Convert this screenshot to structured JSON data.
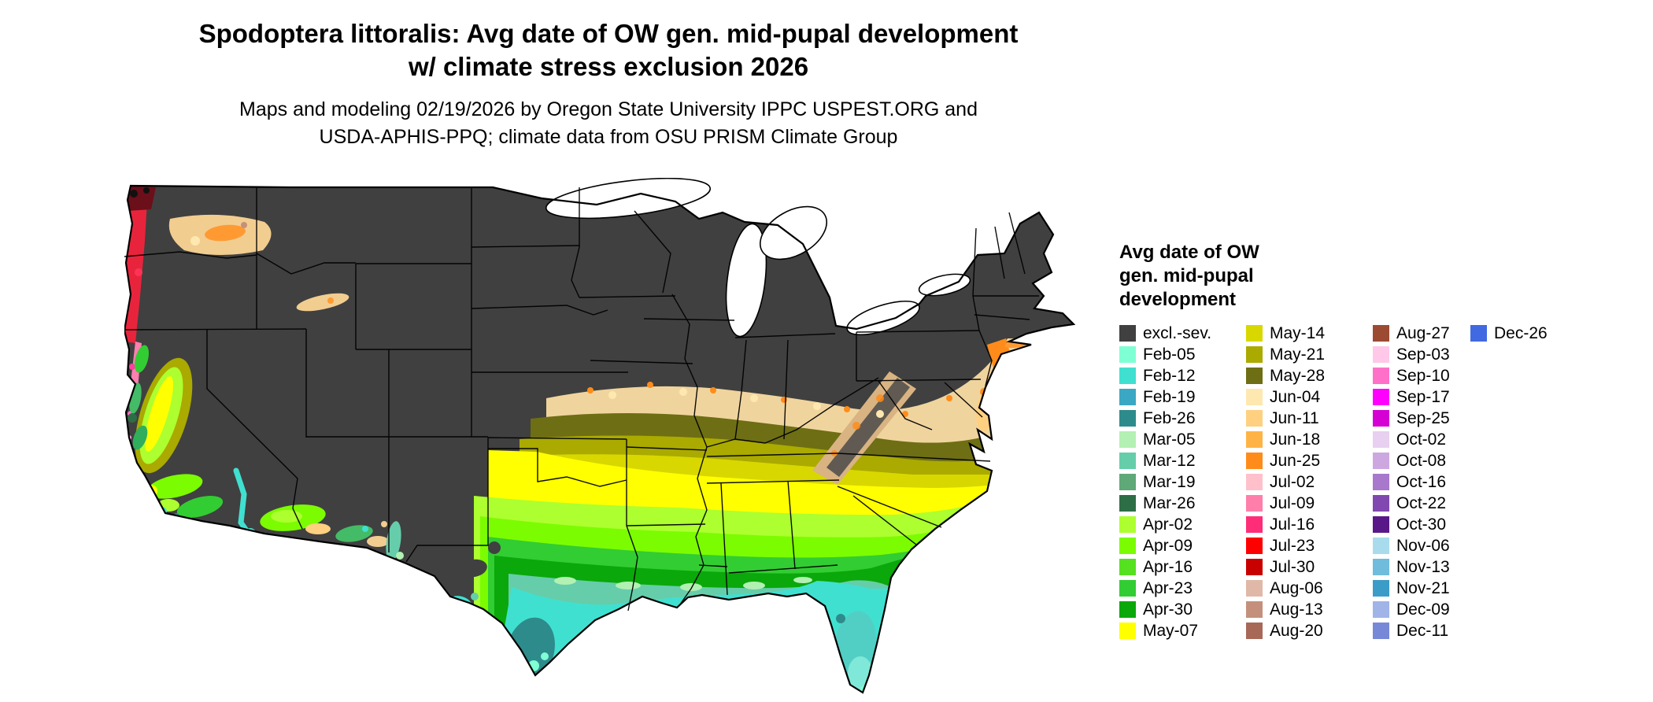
{
  "header": {
    "title_line1": "Spodoptera littoralis: Avg date of OW gen. mid-pupal development",
    "title_line2": "w/ climate stress exclusion 2026",
    "subtitle_line1": "Maps and modeling 02/19/2026 by Oregon State University IPPC USPEST.ORG and",
    "subtitle_line2": "USDA-APHIS-PPQ; climate data from OSU PRISM Climate Group"
  },
  "map": {
    "type": "choropleth-us-continental",
    "base_category": "excl.-sev.",
    "base_color": "#404040"
  },
  "legend": {
    "title_lines": [
      "Avg date of OW",
      "gen. mid-pupal",
      "development"
    ],
    "columns": [
      {
        "entries": [
          {
            "label": "excl.-sev.",
            "color": "#404040"
          },
          {
            "label": "Feb-05",
            "color": "#7fffd4"
          },
          {
            "label": "Feb-12",
            "color": "#40e0d0"
          },
          {
            "label": "Feb-19",
            "color": "#3aa8c4"
          },
          {
            "label": "Feb-26",
            "color": "#2e8b8b"
          },
          {
            "label": "Mar-05",
            "color": "#b3f0b3"
          },
          {
            "label": "Mar-12",
            "color": "#66cdaa"
          },
          {
            "label": "Mar-19",
            "color": "#5fa878"
          },
          {
            "label": "Mar-26",
            "color": "#2e6e46"
          },
          {
            "label": "Apr-02",
            "color": "#adff2f"
          },
          {
            "label": "Apr-09",
            "color": "#7cfc00"
          },
          {
            "label": "Apr-16",
            "color": "#55e020"
          },
          {
            "label": "Apr-23",
            "color": "#32cd32"
          },
          {
            "label": "Apr-30",
            "color": "#0aa80a"
          },
          {
            "label": "May-07",
            "color": "#ffff00"
          }
        ]
      },
      {
        "entries": [
          {
            "label": "May-14",
            "color": "#d8d800"
          },
          {
            "label": "May-21",
            "color": "#aaaa00"
          },
          {
            "label": "May-28",
            "color": "#6e6e14"
          },
          {
            "label": "Jun-04",
            "color": "#ffe8b0"
          },
          {
            "label": "Jun-11",
            "color": "#ffd080"
          },
          {
            "label": "Jun-18",
            "color": "#ffb347"
          },
          {
            "label": "Jun-25",
            "color": "#ff8c1a"
          },
          {
            "label": "Jul-02",
            "color": "#ffc0cb"
          },
          {
            "label": "Jul-09",
            "color": "#ff7faa"
          },
          {
            "label": "Jul-16",
            "color": "#ff2d78"
          },
          {
            "label": "Jul-23",
            "color": "#ff0000"
          },
          {
            "label": "Jul-30",
            "color": "#c80000"
          },
          {
            "label": "Aug-06",
            "color": "#e0b8a8"
          },
          {
            "label": "Aug-13",
            "color": "#c4907c"
          },
          {
            "label": "Aug-20",
            "color": "#a86858"
          }
        ]
      },
      {
        "entries": [
          {
            "label": "Aug-27",
            "color": "#9c4a32"
          },
          {
            "label": "Sep-03",
            "color": "#ffc8e8"
          },
          {
            "label": "Sep-10",
            "color": "#ff70c8"
          },
          {
            "label": "Sep-17",
            "color": "#ff00ff"
          },
          {
            "label": "Sep-25",
            "color": "#d400d4"
          },
          {
            "label": "Oct-02",
            "color": "#e8d0f0"
          },
          {
            "label": "Oct-08",
            "color": "#cda8e0"
          },
          {
            "label": "Oct-16",
            "color": "#a878cc"
          },
          {
            "label": "Oct-22",
            "color": "#8048b0"
          },
          {
            "label": "Oct-30",
            "color": "#581888"
          },
          {
            "label": "Nov-06",
            "color": "#a8dcec"
          },
          {
            "label": "Nov-13",
            "color": "#70bcdc"
          },
          {
            "label": "Nov-21",
            "color": "#3c9cc8"
          },
          {
            "label": "Dec-09",
            "color": "#a0b4e8"
          },
          {
            "label": "Dec-11",
            "color": "#7888d8"
          }
        ]
      },
      {
        "entries": [
          {
            "label": "Dec-26",
            "color": "#4169e1"
          }
        ]
      }
    ]
  }
}
